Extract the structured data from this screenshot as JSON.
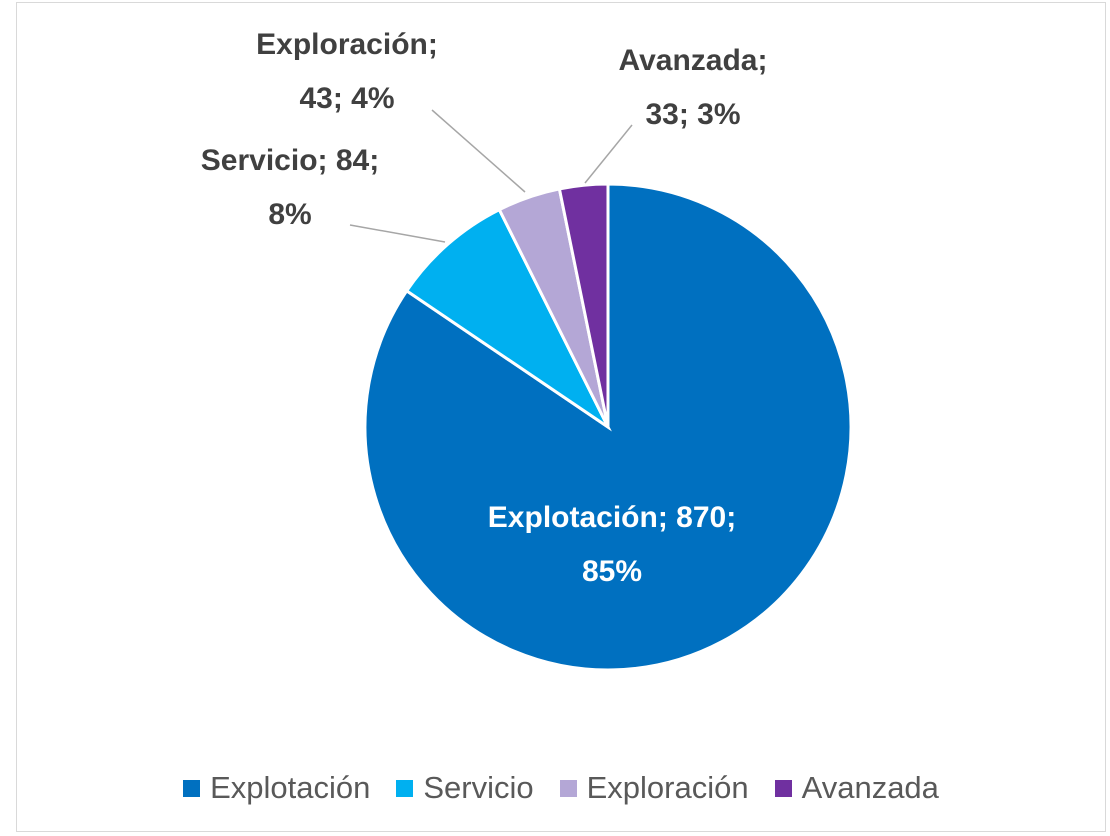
{
  "chart_data": {
    "type": "pie",
    "categories": [
      "Explotación",
      "Servicio",
      "Exploración",
      "Avanzada"
    ],
    "values": [
      870,
      84,
      43,
      33
    ],
    "value_labels": [
      "Explotación; 870; 85%",
      "Servicio; 84; 8%",
      "Exploración; 43; 4%",
      "Avanzada; 33; 3%"
    ],
    "colors": [
      "#0070c0",
      "#00b0f0",
      "#b4a7d6",
      "#7030a0"
    ],
    "legend": "bottom"
  }
}
